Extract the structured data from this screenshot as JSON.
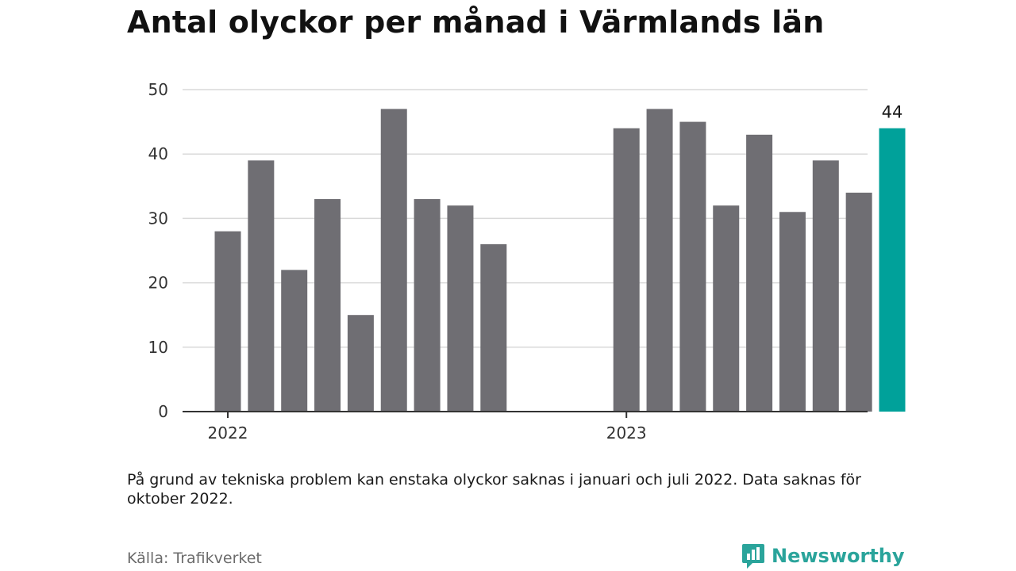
{
  "page": {
    "title": "Antal olyckor per månad i Värmlands län",
    "note": "På grund av tekniska problem kan enstaka olyckor saknas i januari och juli 2022. Data saknas för oktober 2022.",
    "source": "Källa: Trafikverket",
    "brand": "Newsworthy"
  },
  "colors": {
    "bar": "#6f6e73",
    "highlight": "#00a19a",
    "grid": "#d9d9d9",
    "axis": "#333333",
    "brand": "#2aa49b"
  },
  "chart_data": {
    "type": "bar",
    "title": "Antal olyckor per månad i Värmlands län",
    "xlabel": "",
    "ylabel": "",
    "ylim": [
      0,
      50
    ],
    "yticks": [
      0,
      10,
      20,
      30,
      40,
      50
    ],
    "grid": true,
    "categories": [
      "2022-01",
      "2022-02",
      "2022-03",
      "2022-04",
      "2022-05",
      "2022-06",
      "2022-07",
      "2022-08",
      "2022-09",
      "2022-10",
      "2022-11",
      "2022-12",
      "2023-01",
      "2023-02",
      "2023-03",
      "2023-04",
      "2023-05",
      "2023-06",
      "2023-07",
      "2023-08",
      "2023-09"
    ],
    "values": [
      28,
      39,
      22,
      33,
      15,
      47,
      33,
      32,
      26,
      null,
      null,
      null,
      44,
      47,
      45,
      32,
      43,
      31,
      39,
      34,
      44
    ],
    "x_tick_labels": [
      {
        "label": "2022",
        "category": "2022-01"
      },
      {
        "label": "2023",
        "category": "2023-01"
      }
    ],
    "highlight_category": "2023-09",
    "data_labels": [
      {
        "category": "2023-09",
        "text": "44"
      }
    ]
  }
}
